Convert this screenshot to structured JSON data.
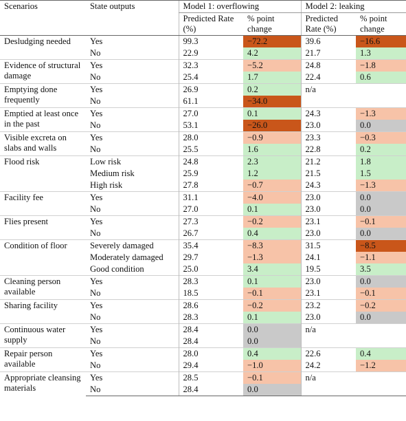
{
  "header": {
    "scenarios": "Scenarios",
    "state_outputs": "State outputs",
    "model1": "Model 1: overflowing",
    "model2": "Model 2: leaking",
    "pred_rate": "Predicted Rate (%)",
    "pct_change": "% point change"
  },
  "colors": {
    "positive": "#c8eec8",
    "negative": "#f7c3a8",
    "strong_negative": "#c9561a",
    "zero": "#c9c9c9"
  },
  "rows": [
    {
      "scenario": "Desludging needed",
      "state": "Yes",
      "m1_rate": "99.3",
      "m1_change": "−72.2",
      "m1_c": "d",
      "m2_rate": "39.6",
      "m2_change": "−16.6",
      "m2_c": "d"
    },
    {
      "scenario": "",
      "state": "No",
      "m1_rate": "22.9",
      "m1_change": "4.2",
      "m1_c": "g",
      "m2_rate": "21.7",
      "m2_change": "1.3",
      "m2_c": "g"
    },
    {
      "scenario": "Evidence of structural damage",
      "state": "Yes",
      "m1_rate": "32.3",
      "m1_change": "−5.2",
      "m1_c": "o",
      "m2_rate": "24.8",
      "m2_change": "−1.8",
      "m2_c": "o"
    },
    {
      "scenario": "",
      "state": "No",
      "m1_rate": "25.4",
      "m1_change": "1.7",
      "m1_c": "g",
      "m2_rate": "22.4",
      "m2_change": "0.6",
      "m2_c": "g"
    },
    {
      "scenario": "Emptying done frequently",
      "state": "Yes",
      "m1_rate": "26.9",
      "m1_change": "0.2",
      "m1_c": "g",
      "m2_rate": "n/a",
      "m2_change": "",
      "m2_c": ""
    },
    {
      "scenario": "",
      "state": "No",
      "m1_rate": "61.1",
      "m1_change": "−34.0",
      "m1_c": "d",
      "m2_rate": "",
      "m2_change": "",
      "m2_c": ""
    },
    {
      "scenario": "Emptied at least once in the past",
      "state": "Yes",
      "m1_rate": "27.0",
      "m1_change": "0.1",
      "m1_c": "g",
      "m2_rate": "24.3",
      "m2_change": "−1.3",
      "m2_c": "o"
    },
    {
      "scenario": "",
      "state": "No",
      "m1_rate": "53.1",
      "m1_change": "−26.0",
      "m1_c": "d",
      "m2_rate": "23.0",
      "m2_change": "0.0",
      "m2_c": "n"
    },
    {
      "scenario": "Visible excreta on slabs and walls",
      "state": "Yes",
      "m1_rate": "28.0",
      "m1_change": "−0.9",
      "m1_c": "o",
      "m2_rate": "23.3",
      "m2_change": "−0.3",
      "m2_c": "o"
    },
    {
      "scenario": "",
      "state": "No",
      "m1_rate": "25.5",
      "m1_change": "1.6",
      "m1_c": "g",
      "m2_rate": "22.8",
      "m2_change": "0.2",
      "m2_c": "g"
    },
    {
      "scenario": "Flood risk",
      "state": "Low risk",
      "m1_rate": "24.8",
      "m1_change": "2.3",
      "m1_c": "g",
      "m2_rate": "21.2",
      "m2_change": "1.8",
      "m2_c": "g"
    },
    {
      "scenario": "",
      "state": "Medium risk",
      "m1_rate": "25.9",
      "m1_change": "1.2",
      "m1_c": "g",
      "m2_rate": "21.5",
      "m2_change": "1.5",
      "m2_c": "g"
    },
    {
      "scenario": "",
      "state": "High risk",
      "m1_rate": "27.8",
      "m1_change": "−0.7",
      "m1_c": "o",
      "m2_rate": "24.3",
      "m2_change": "−1.3",
      "m2_c": "o"
    },
    {
      "scenario": "Facility fee",
      "state": "Yes",
      "m1_rate": "31.1",
      "m1_change": "−4.0",
      "m1_c": "o",
      "m2_rate": "23.0",
      "m2_change": "0.0",
      "m2_c": "n"
    },
    {
      "scenario": "",
      "state": "No",
      "m1_rate": "27.0",
      "m1_change": "0.1",
      "m1_c": "g",
      "m2_rate": "23.0",
      "m2_change": "0.0",
      "m2_c": "n"
    },
    {
      "scenario": "Flies present",
      "state": "Yes",
      "m1_rate": "27.3",
      "m1_change": "−0.2",
      "m1_c": "o",
      "m2_rate": "23.1",
      "m2_change": "−0.1",
      "m2_c": "o"
    },
    {
      "scenario": "",
      "state": "No",
      "m1_rate": "26.7",
      "m1_change": "0.4",
      "m1_c": "g",
      "m2_rate": "23.0",
      "m2_change": "0.0",
      "m2_c": "n"
    },
    {
      "scenario": "Condition of floor",
      "state": "Severely damaged",
      "m1_rate": "35.4",
      "m1_change": "−8.3",
      "m1_c": "o",
      "m2_rate": "31.5",
      "m2_change": "−8.5",
      "m2_c": "d"
    },
    {
      "scenario": "",
      "state": "Moderately damaged",
      "m1_rate": "29.7",
      "m1_change": "−1.3",
      "m1_c": "o",
      "m2_rate": "24.1",
      "m2_change": "−1.1",
      "m2_c": "o"
    },
    {
      "scenario": "",
      "state": "Good condition",
      "m1_rate": "25.0",
      "m1_change": "3.4",
      "m1_c": "g",
      "m2_rate": "19.5",
      "m2_change": "3.5",
      "m2_c": "g"
    },
    {
      "scenario": "Cleaning person available",
      "state": "Yes",
      "m1_rate": "28.3",
      "m1_change": "0.1",
      "m1_c": "g",
      "m2_rate": "23.0",
      "m2_change": "0.0",
      "m2_c": "n"
    },
    {
      "scenario": "",
      "state": "No",
      "m1_rate": "18.5",
      "m1_change": "−0.1",
      "m1_c": "o",
      "m2_rate": "23.1",
      "m2_change": "−0.1",
      "m2_c": "o"
    },
    {
      "scenario": "Sharing facility",
      "state": "Yes",
      "m1_rate": "28.6",
      "m1_change": "−0.2",
      "m1_c": "o",
      "m2_rate": "23.2",
      "m2_change": "−0.2",
      "m2_c": "o"
    },
    {
      "scenario": "",
      "state": "No",
      "m1_rate": "28.3",
      "m1_change": "0.1",
      "m1_c": "g",
      "m2_rate": "23.0",
      "m2_change": "0.0",
      "m2_c": "n"
    },
    {
      "scenario": "Continuous water supply",
      "state": "Yes",
      "m1_rate": "28.4",
      "m1_change": "0.0",
      "m1_c": "n",
      "m2_rate": "n/a",
      "m2_change": "",
      "m2_c": ""
    },
    {
      "scenario": "",
      "state": "No",
      "m1_rate": "28.4",
      "m1_change": "0.0",
      "m1_c": "n",
      "m2_rate": "",
      "m2_change": "",
      "m2_c": ""
    },
    {
      "scenario": "Repair person available",
      "state": "Yes",
      "m1_rate": "28.0",
      "m1_change": "0.4",
      "m1_c": "g",
      "m2_rate": "22.6",
      "m2_change": "0.4",
      "m2_c": "g"
    },
    {
      "scenario": "",
      "state": "No",
      "m1_rate": "29.4",
      "m1_change": "−1.0",
      "m1_c": "o",
      "m2_rate": "24.2",
      "m2_change": "−1.2",
      "m2_c": "o"
    },
    {
      "scenario": "Appropriate cleansing materials",
      "state": "Yes",
      "m1_rate": "28.5",
      "m1_change": "−0.1",
      "m1_c": "o",
      "m2_rate": "n/a",
      "m2_change": "",
      "m2_c": ""
    },
    {
      "scenario": "",
      "state": "No",
      "m1_rate": "28.4",
      "m1_change": "0.0",
      "m1_c": "n",
      "m2_rate": "",
      "m2_change": "",
      "m2_c": ""
    }
  ]
}
